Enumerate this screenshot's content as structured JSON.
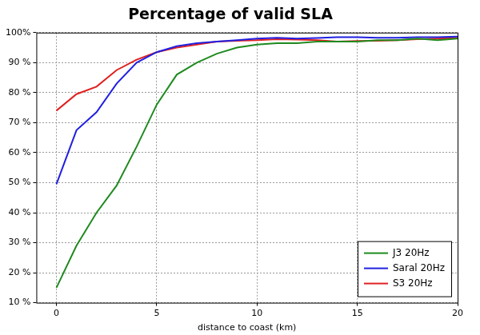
{
  "chart_data": {
    "type": "line",
    "title": "Percentage of valid SLA",
    "x_label": "distance to coast (km)",
    "x": [
      0,
      1,
      2,
      3,
      4,
      5,
      6,
      7,
      8,
      9,
      10,
      11,
      12,
      13,
      14,
      15,
      16,
      17,
      18,
      19,
      20
    ],
    "series": [
      {
        "name": "J3 20Hz",
        "color": "#1f8a1f",
        "values": [
          15,
          29,
          40,
          49,
          62,
          76,
          86,
          90,
          93,
          95,
          96,
          96.5,
          96.5,
          97,
          97,
          97,
          97.5,
          97.5,
          98,
          97.5,
          98
        ]
      },
      {
        "name": "Saral 20Hz",
        "color": "#2020e0",
        "values": [
          49.5,
          67.5,
          73.5,
          83,
          90,
          93.5,
          95.5,
          96.5,
          97,
          97.5,
          98,
          98.3,
          98,
          98.2,
          98.5,
          98.5,
          98.3,
          98.3,
          98.5,
          98.5,
          98.7
        ]
      },
      {
        "name": "S3 20Hz",
        "color": "#e02020",
        "values": [
          74,
          79.5,
          82,
          87.5,
          91,
          93.5,
          95,
          96,
          97,
          97.3,
          97.5,
          97.8,
          97.7,
          97.5,
          97,
          97.2,
          97.3,
          97.5,
          97.8,
          98,
          98.2
        ]
      }
    ],
    "xlim": [
      -1,
      20
    ],
    "ylim": [
      10,
      100
    ],
    "xticks": [
      0,
      5,
      10,
      15,
      20
    ],
    "yticks": [
      {
        "value": 10,
        "label": "10 %"
      },
      {
        "value": 20,
        "label": "20 %"
      },
      {
        "value": 30,
        "label": "30 %"
      },
      {
        "value": 40,
        "label": "40 %"
      },
      {
        "value": 50,
        "label": "50 %"
      },
      {
        "value": 60,
        "label": "60 %"
      },
      {
        "value": 70,
        "label": "70 %"
      },
      {
        "value": 80,
        "label": "80 %"
      },
      {
        "value": 90,
        "label": "90 %"
      },
      {
        "value": 100,
        "label": "100%"
      }
    ],
    "grid": true,
    "legend": "lower right"
  }
}
